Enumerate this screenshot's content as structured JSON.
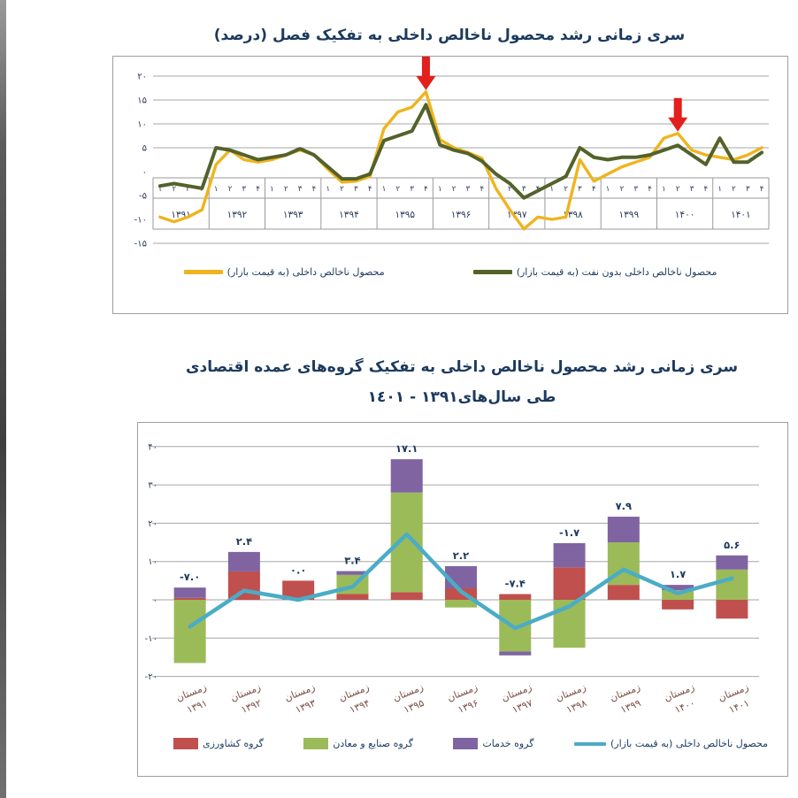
{
  "page": {
    "background": "#ffffff",
    "edge_strip_color": "#5c5c5c"
  },
  "chart1": {
    "title": "سری زمانی رشد محصول ناخالص داخلی به تفکیک فصل (درصد)",
    "type": "line",
    "ylim": [
      -15,
      20
    ],
    "grid": "horizontal",
    "y_values": [
      20,
      15,
      10,
      5,
      0,
      -5,
      -10,
      -15
    ],
    "y_ticks": [
      "۲۰",
      "۱۵",
      "۱۰",
      "۵",
      "۰",
      "-۵",
      "-۱۰",
      "-۱۵"
    ],
    "quarter_labels": [
      "۱",
      "۲",
      "۳",
      "۴"
    ],
    "years": [
      "۱۳۹۱",
      "۱۳۹۲",
      "۱۳۹۳",
      "۱۳۹۴",
      "۱۳۹۵",
      "۱۳۹۶",
      "۱۳۹۷",
      "۱۳۹۸",
      "۱۳۹۹",
      "۱۴۰۰",
      "۱۴۰۱"
    ],
    "series": [
      {
        "name": "محصول ناخالص داخلی (به قیمت بازار)",
        "color": "#efb41e",
        "values": [
          -9.5,
          -10.5,
          -9.5,
          -8,
          1.5,
          4.5,
          2.5,
          2,
          2.5,
          3.5,
          4.5,
          3.5,
          0.5,
          -2.2,
          -2,
          -1,
          9,
          12.5,
          13.5,
          16.7,
          6.7,
          5,
          4,
          2.8,
          -3.5,
          -8,
          -12,
          -9.5,
          -10,
          -9.5,
          2.5,
          -2,
          -0.5,
          1,
          2,
          3,
          7,
          8,
          4.5,
          3.5,
          3,
          2.5,
          3.5,
          5
        ]
      },
      {
        "name": "محصول ناخالص داخلی بدون نفت (به قیمت بازار)",
        "color": "#53622a",
        "values": [
          -3,
          -2.5,
          -3,
          -3.5,
          5,
          4.5,
          3.5,
          2.5,
          3,
          3.5,
          4.8,
          3.5,
          1,
          -1.5,
          -1.5,
          -0.5,
          6.5,
          7.5,
          8.5,
          14,
          5.6,
          4.5,
          3.8,
          2.2,
          -0.5,
          -2.5,
          -5.5,
          -4,
          -2.5,
          -1,
          5,
          3,
          2.5,
          3,
          3,
          3.5,
          4.5,
          5.5,
          3.5,
          1.5,
          7,
          2,
          2,
          4
        ]
      }
    ],
    "legend": [
      {
        "label": "محصول ناخالص داخلی بدون نفت (به قیمت بازار)",
        "color": "#53622a",
        "type": "line"
      },
      {
        "label": "محصول ناخالص داخلی (به قیمت بازار)",
        "color": "#efb41e",
        "type": "line"
      }
    ],
    "annotations": [
      {
        "type": "arrow-down",
        "color": "#e2201d",
        "quarter_index": 19
      },
      {
        "type": "arrow-down",
        "color": "#e2201d",
        "quarter_index": 37
      }
    ]
  },
  "chart2": {
    "title_line1": "سری زمانی رشد محصول ناخالص داخلی به تفکیک گروه‌های عمده اقتصادی",
    "title_line2": "طی سال‌های۱۳۹۱ - ١٤٠١",
    "type": "stacked-bar-with-line",
    "ylim": [
      -20,
      40
    ],
    "y_values": [
      40,
      30,
      20,
      10,
      0,
      -10,
      -20
    ],
    "y_ticks": [
      "۴۰",
      "۳۰",
      "۲۰",
      "۱۰",
      "۰",
      "-۱۰",
      "-۲۰"
    ],
    "categories": [
      {
        "season": "زمستان",
        "year": "۱۳۹۱"
      },
      {
        "season": "زمستان",
        "year": "۱۳۹۲"
      },
      {
        "season": "زمستان",
        "year": "۱۳۹۳"
      },
      {
        "season": "زمستان",
        "year": "۱۳۹۴"
      },
      {
        "season": "زمستان",
        "year": "۱۳۹۵"
      },
      {
        "season": "زمستان",
        "year": "۱۳۹۶"
      },
      {
        "season": "زمستان",
        "year": "۱۳۹۷"
      },
      {
        "season": "زمستان",
        "year": "۱۳۹۸"
      },
      {
        "season": "زمستان",
        "year": "۱۳۹۹"
      },
      {
        "season": "زمستان",
        "year": "۱۴۰۰"
      },
      {
        "season": "زمستان",
        "year": "۱۴۰۱"
      }
    ],
    "bar_series": [
      {
        "name": "گروه کشاورزی",
        "color": "#c0504d",
        "values": [
          0.5,
          7.4,
          5.0,
          1.5,
          2.0,
          3.0,
          1.5,
          8.5,
          3.9,
          -2.5,
          -4.9
        ]
      },
      {
        "name": "گروه صنایع و معادن",
        "color": "#9bbb59",
        "values": [
          -16.5,
          0,
          0,
          5.0,
          26.0,
          -2.0,
          -13.5,
          -12.5,
          11.1,
          2.5,
          7.9
        ]
      },
      {
        "name": "گروه خدمات",
        "color": "#8064a2",
        "values": [
          2.7,
          5.1,
          0,
          1.0,
          8.7,
          5.8,
          -1.0,
          6.3,
          6.7,
          1.4,
          3.7
        ]
      }
    ],
    "line_series": {
      "name": "محصول ناخالص داخلی (به قیمت بازار)",
      "color": "#4bacc6",
      "values": [
        -7.0,
        2.4,
        0.0,
        3.4,
        17.1,
        2.2,
        -7.4,
        -1.7,
        7.9,
        1.7,
        5.6
      ]
    },
    "bar_labels": [
      "-۷.۰",
      "۲.۴",
      "۰.۰",
      "۳.۴",
      "۱۷.۱",
      "۲.۲",
      "-۷.۴",
      "-۱.۷",
      "۷.۹",
      "۱.۷",
      "۵.۶"
    ],
    "legend": [
      {
        "label": "محصول ناخالص داخلی (به قیمت بازار)",
        "color": "#4bacc6",
        "type": "line"
      },
      {
        "label": "گروه خدمات",
        "color": "#8064a2",
        "type": "box"
      },
      {
        "label": "گروه صنایع و معادن",
        "color": "#9bbb59",
        "type": "box"
      },
      {
        "label": "گروه کشاورزی",
        "color": "#c0504d",
        "type": "box"
      }
    ]
  },
  "chart_data": [
    {
      "type": "line",
      "title": "سری زمانی رشد محصول ناخالص داخلی به تفکیک فصل (درصد)",
      "x": "quarters 1391Q1 .. 1401Q4 (Iranian calendar years, 4 quarters each)",
      "ylim": [
        -15,
        20
      ],
      "series": [
        {
          "name": "GDP at market prices",
          "color": "#efb41e",
          "values": [
            -9.5,
            -10.5,
            -9.5,
            -8,
            1.5,
            4.5,
            2.5,
            2,
            2.5,
            3.5,
            4.5,
            3.5,
            0.5,
            -2.2,
            -2,
            -1,
            9,
            12.5,
            13.5,
            16.7,
            6.7,
            5,
            4,
            2.8,
            -3.5,
            -8,
            -12,
            -9.5,
            -10,
            -9.5,
            2.5,
            -2,
            -0.5,
            1,
            2,
            3,
            7,
            8,
            4.5,
            3.5,
            3,
            2.5,
            3.5,
            5
          ]
        },
        {
          "name": "GDP without oil at market prices",
          "color": "#53622a",
          "values": [
            -3,
            -2.5,
            -3,
            -3.5,
            5,
            4.5,
            3.5,
            2.5,
            3,
            3.5,
            4.8,
            3.5,
            1,
            -1.5,
            -1.5,
            -0.5,
            6.5,
            7.5,
            8.5,
            14,
            5.6,
            4.5,
            3.8,
            2.2,
            -0.5,
            -2.5,
            -5.5,
            -4,
            -2.5,
            -1,
            5,
            3,
            2.5,
            3,
            3,
            3.5,
            4.5,
            5.5,
            3.5,
            1.5,
            7,
            2,
            2,
            4
          ]
        }
      ],
      "annotations": "two red down-arrows at 1395Q4 peak (~16.7) and 1400Q2 peak (~8)"
    },
    {
      "type": "bar",
      "subtype": "stacked-with-line",
      "title": "سری زمانی رشد محصول ناخالص داخلی به تفکیک گروه‌های عمده اقتصادی طی سال‌های ۱۳۹۱-۱۴۰۱",
      "categories": [
        "زمستان ۱۳۹۱",
        "زمستان ۱۳۹۲",
        "زمستان ۱۳۹۳",
        "زمستان ۱۳۹۴",
        "زمستان ۱۳۹۵",
        "زمستان ۱۳۹۶",
        "زمستان ۱۳۹۷",
        "زمستان ۱۳۹۸",
        "زمستان ۱۳۹۹",
        "زمستان ۱۴۰۰",
        "زمستان ۱۴۰۱"
      ],
      "ylim": [
        -20,
        40
      ],
      "series": [
        {
          "name": "Agriculture group",
          "values": [
            0.5,
            7.4,
            5.0,
            1.5,
            2.0,
            3.0,
            1.5,
            8.5,
            3.9,
            -2.5,
            -4.9
          ]
        },
        {
          "name": "Industry and mining group",
          "values": [
            -16.5,
            0,
            0,
            5.0,
            26.0,
            -2.0,
            -13.5,
            -12.5,
            11.1,
            2.5,
            7.9
          ]
        },
        {
          "name": "Services group",
          "values": [
            2.7,
            5.1,
            0,
            1.0,
            8.7,
            5.8,
            -1.0,
            6.3,
            6.7,
            1.4,
            3.7
          ]
        },
        {
          "name": "GDP at market prices (line)",
          "values": [
            -7.0,
            2.4,
            0.0,
            3.4,
            17.1,
            2.2,
            -7.4,
            -1.7,
            7.9,
            1.7,
            5.6
          ]
        }
      ],
      "data_labels": [
        -7.0,
        2.4,
        0.0,
        3.4,
        17.1,
        2.2,
        -7.4,
        -1.7,
        7.9,
        1.7,
        5.6
      ]
    }
  ]
}
